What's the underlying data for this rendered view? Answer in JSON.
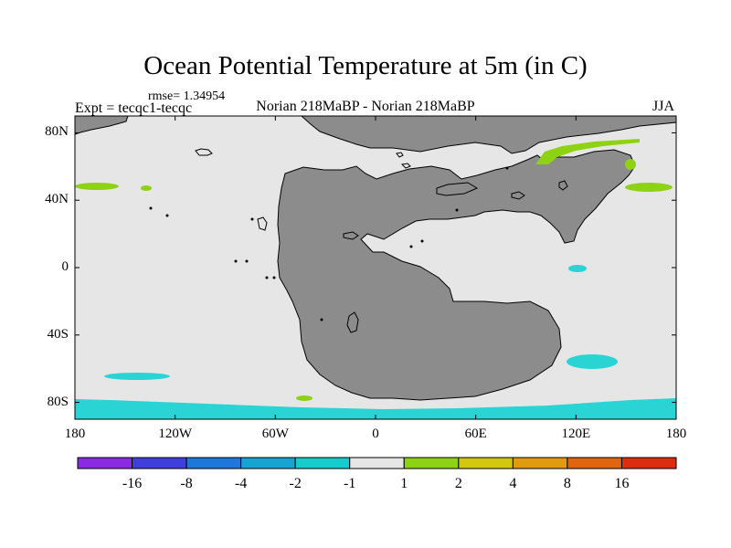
{
  "title": "Ocean Potential Temperature at 5m (in C)",
  "rmse_label": "rmse= 1.34954",
  "experiment_label": "Expt = tecqc1-tecqc",
  "comparison_label": "Norian 218MaBP - Norian 218MaBP",
  "season_label": "JJA",
  "map": {
    "projection": "cylindrical-equidistant",
    "lon_range": [
      -180,
      180
    ],
    "lat_range": [
      -90,
      90
    ],
    "ocean_color": "#e6e6e6",
    "land_color": "#8c8c8c",
    "x_ticks": [
      {
        "value": -180,
        "label": "180"
      },
      {
        "value": -120,
        "label": "120W"
      },
      {
        "value": -60,
        "label": "60W"
      },
      {
        "value": 0,
        "label": "0"
      },
      {
        "value": 60,
        "label": "60E"
      },
      {
        "value": 120,
        "label": "120E"
      },
      {
        "value": 180,
        "label": "180"
      }
    ],
    "y_ticks": [
      {
        "value": 80,
        "label": "80N"
      },
      {
        "value": 40,
        "label": "40N"
      },
      {
        "value": 0,
        "label": "0"
      },
      {
        "value": -40,
        "label": "40S"
      },
      {
        "value": -80,
        "label": "80S"
      }
    ],
    "anomaly_colors": {
      "negative_1_to_2": "#2ad4d4",
      "positive_1_to_2": "#8ed214"
    }
  },
  "colorbar": {
    "colors": [
      "#8a2be2",
      "#3f3fde",
      "#1e78dc",
      "#16a5d2",
      "#16cccc",
      "#e6e6e6",
      "#8ed214",
      "#d2c80f",
      "#e19b0f",
      "#e1640f",
      "#dc2d0f"
    ],
    "labels": [
      "-16",
      "-8",
      "-4",
      "-2",
      "-1",
      "1",
      "2",
      "4",
      "8",
      "16"
    ]
  }
}
